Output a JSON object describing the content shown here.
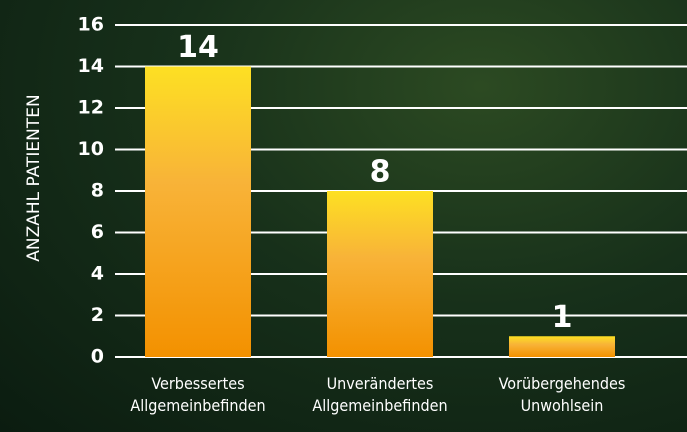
{
  "chart_data": {
    "type": "bar",
    "y_label": "ANZAHL PATIENTEN",
    "categories": [
      "Verbessertes\nAllgemeinbefinden",
      "Unverändertes\nAllgemeinbefinden",
      "Vorübergehendes\nUnwohlsein"
    ],
    "values": [
      14,
      8,
      1
    ],
    "color": [
      "#fde023",
      "#f39100"
    ],
    "ylim": [
      0,
      16
    ],
    "yticks": [
      0,
      2,
      4,
      6,
      8,
      10,
      12,
      14,
      16
    ],
    "grid": true
  }
}
